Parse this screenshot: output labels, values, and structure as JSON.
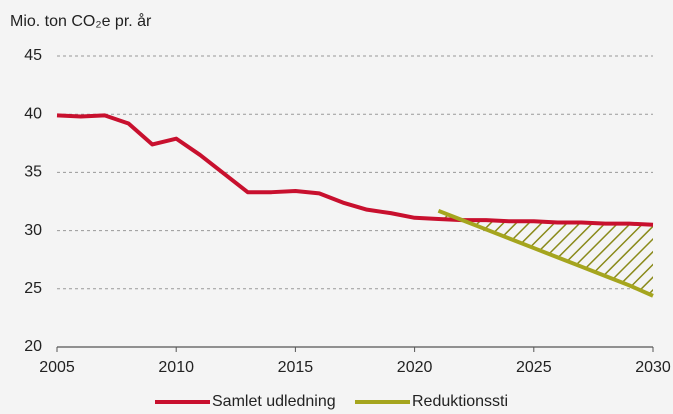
{
  "chart_data": {
    "type": "line",
    "y_label": "Mio. ton CO₂e pr. år",
    "x": [
      2005,
      2006,
      2007,
      2008,
      2009,
      2010,
      2011,
      2012,
      2013,
      2014,
      2015,
      2016,
      2017,
      2018,
      2019,
      2020,
      2021,
      2022,
      2023,
      2024,
      2025,
      2026,
      2027,
      2028,
      2029,
      2030
    ],
    "series": [
      {
        "name": "Samlet udledning",
        "color": "#c8102e",
        "values": [
          39.9,
          39.8,
          39.9,
          39.2,
          37.4,
          37.9,
          36.5,
          34.9,
          33.3,
          33.3,
          33.4,
          33.2,
          32.4,
          31.8,
          31.5,
          31.1,
          31.0,
          30.9,
          30.9,
          30.8,
          30.8,
          30.7,
          30.7,
          30.6,
          30.6,
          30.5
        ]
      },
      {
        "name": "Reduktionssti",
        "color": "#a5a51e",
        "values": [
          null,
          null,
          null,
          null,
          null,
          null,
          null,
          null,
          null,
          null,
          null,
          null,
          null,
          null,
          null,
          null,
          31.7,
          30.9,
          30.1,
          29.3,
          28.5,
          27.7,
          26.9,
          26.1,
          25.3,
          24.4
        ]
      }
    ],
    "xlim": [
      2005,
      2030
    ],
    "xticks": [
      2005,
      2010,
      2015,
      2020,
      2025,
      2030
    ],
    "ylim": [
      20,
      45
    ],
    "yticks": [
      20,
      25,
      30,
      35,
      40,
      45
    ],
    "grid": true,
    "legend": "bottom"
  }
}
